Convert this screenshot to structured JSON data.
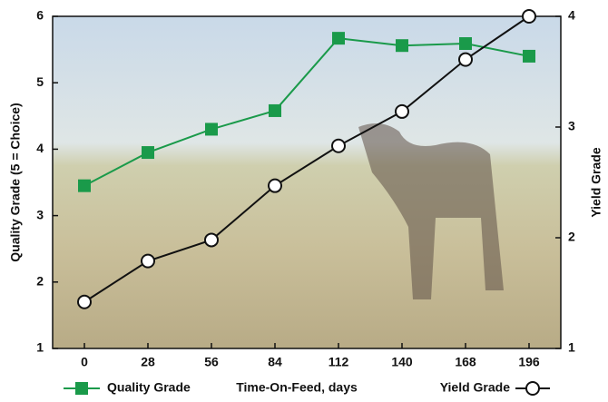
{
  "chart_data": {
    "type": "line",
    "x_label": "Time-On-Feed, days",
    "y_label": "Quality Grade (5 = Choice)",
    "y2_label": "Yield Grade",
    "categories": [
      "0",
      "28",
      "56",
      "84",
      "112",
      "140",
      "168",
      "196"
    ],
    "series": [
      {
        "name": "Quality Grade",
        "color": "#1a9a4a",
        "marker": "square",
        "values": [
          3.45,
          3.95,
          4.3,
          4.58,
          5.67,
          5.56,
          5.59,
          5.4
        ]
      },
      {
        "name": "Yield Grade",
        "color": "#111111",
        "marker": "circle",
        "axis": "y2",
        "values": [
          1.42,
          1.79,
          1.98,
          2.47,
          2.83,
          3.14,
          3.61,
          4.0
        ]
      }
    ],
    "ylim": [
      1,
      6
    ],
    "yticks": [
      1,
      2,
      3,
      4,
      5,
      6
    ],
    "y2lim": [
      1,
      4
    ],
    "y2ticks": [
      1,
      2,
      3,
      4
    ]
  }
}
